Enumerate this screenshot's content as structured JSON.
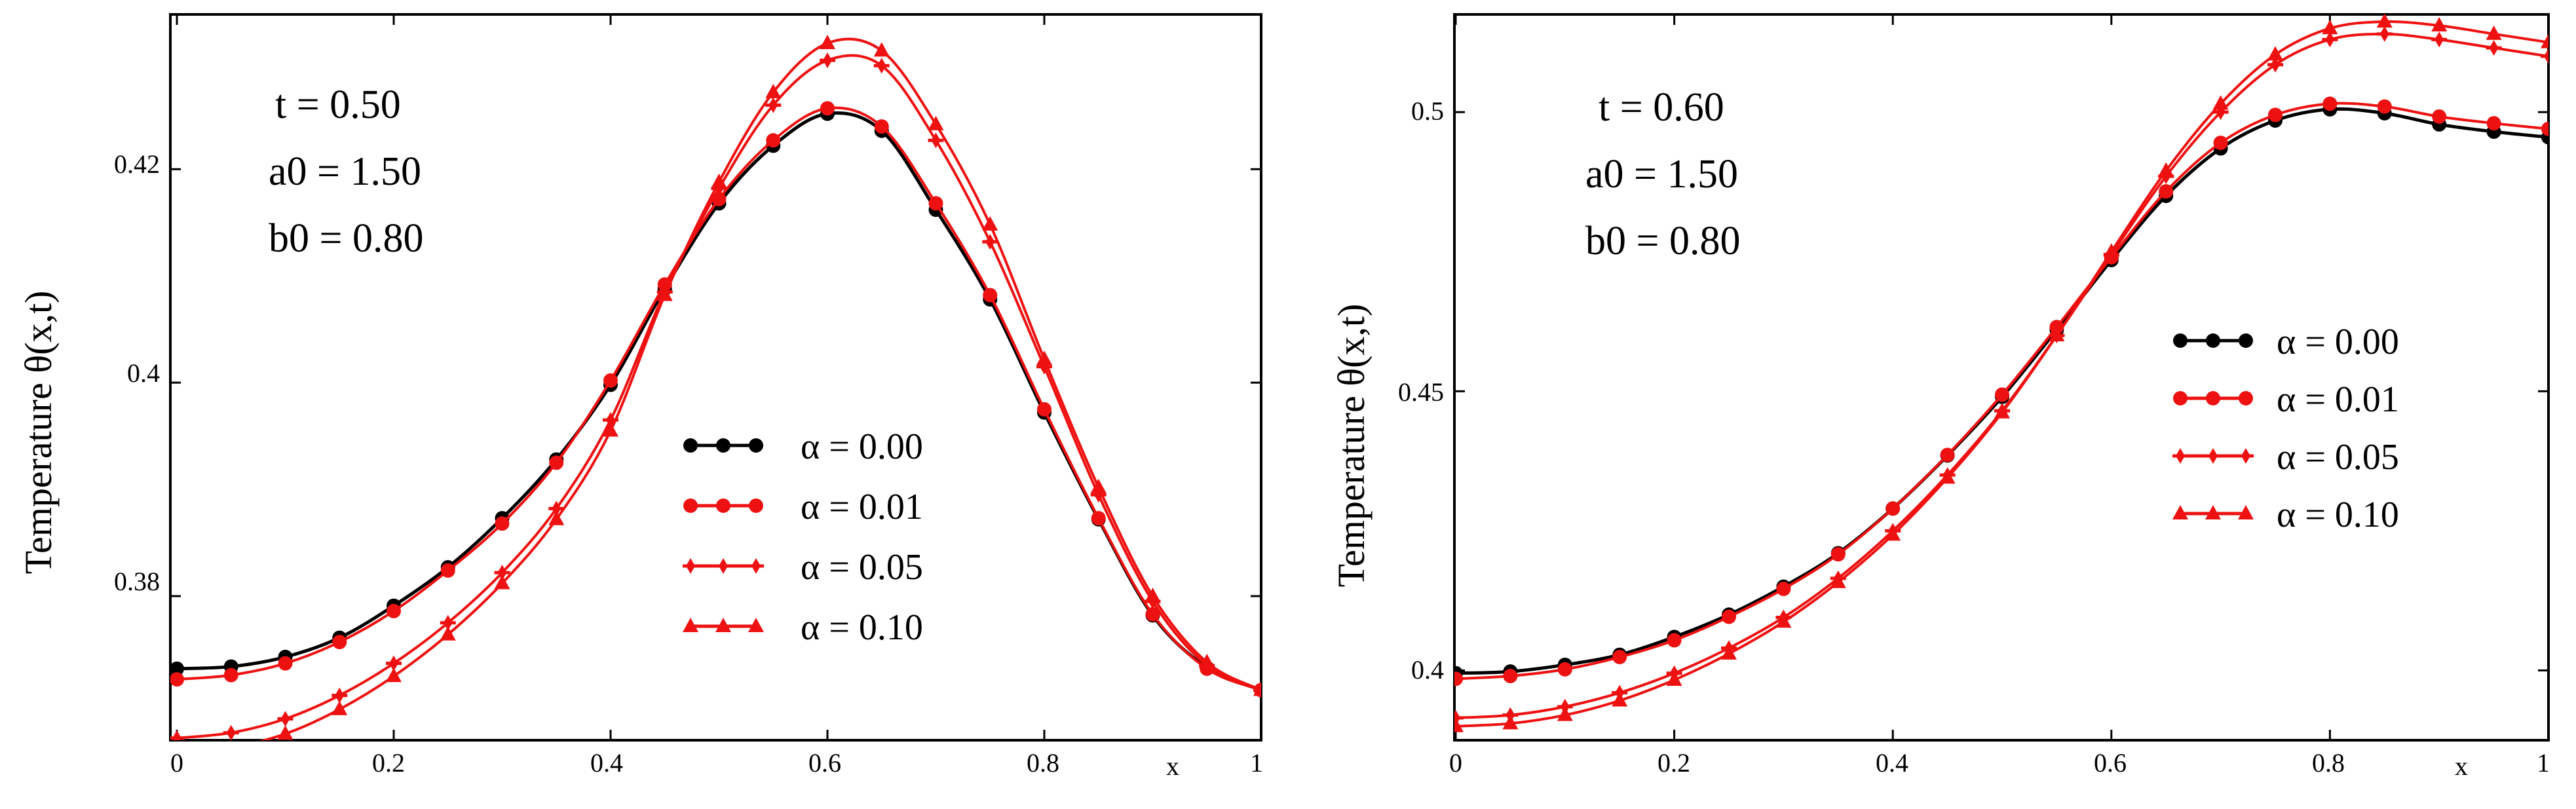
{
  "chart_data": [
    {
      "type": "line",
      "title": "",
      "xlabel": "x",
      "ylabel": "Temperature θ(x,t)",
      "xlim": [
        0,
        1
      ],
      "ylim": [
        0.3665,
        0.4345
      ],
      "x_ticks": [
        "0",
        "0.2",
        "0.4",
        "0.6",
        "0.8",
        "1"
      ],
      "y_ticks": [
        "0.38",
        "0.4",
        "0.42"
      ],
      "annotations": [
        "t = 0.50",
        "a0 = 1.50",
        "b0 = 0.80"
      ],
      "legend_position": "center-right",
      "x": [
        0,
        0.05,
        0.1,
        0.15,
        0.2,
        0.25,
        0.3,
        0.35,
        0.4,
        0.45,
        0.5,
        0.55,
        0.6,
        0.65,
        0.7,
        0.75,
        0.8,
        0.85,
        0.9,
        0.95,
        1.0
      ],
      "series": [
        {
          "name": "α = 0.00",
          "color": "#000000",
          "marker": "circle",
          "values": [
            0.3732,
            0.3734,
            0.3743,
            0.3761,
            0.3791,
            0.3827,
            0.3873,
            0.3928,
            0.3998,
            0.4088,
            0.4168,
            0.4222,
            0.4252,
            0.4236,
            0.4162,
            0.4078,
            0.3972,
            0.3872,
            0.3782,
            0.3733,
            0.3712
          ]
        },
        {
          "name": "α = 0.01",
          "color": "#ee1111",
          "marker": "circle",
          "values": [
            0.3722,
            0.3726,
            0.3737,
            0.3757,
            0.3786,
            0.3824,
            0.3868,
            0.3925,
            0.4002,
            0.4092,
            0.4172,
            0.4227,
            0.4257,
            0.424,
            0.4168,
            0.4082,
            0.3975,
            0.3873,
            0.3783,
            0.3732,
            0.3712
          ]
        },
        {
          "name": "α = 0.05",
          "color": "#ee1111",
          "marker": "plus",
          "values": [
            0.3667,
            0.3672,
            0.3685,
            0.3707,
            0.3737,
            0.3775,
            0.3822,
            0.3882,
            0.3965,
            0.4085,
            0.4182,
            0.426,
            0.4302,
            0.4297,
            0.4227,
            0.4132,
            0.4015,
            0.3895,
            0.3795,
            0.3735,
            0.3712
          ]
        },
        {
          "name": "α = 0.10",
          "color": "#ee1111",
          "marker": "triangle",
          "values": [
            0.3652,
            0.3658,
            0.3671,
            0.3694,
            0.3725,
            0.3764,
            0.3812,
            0.3872,
            0.3955,
            0.4082,
            0.4188,
            0.4272,
            0.4318,
            0.4311,
            0.4242,
            0.4148,
            0.4022,
            0.3902,
            0.38,
            0.3738,
            0.3712
          ]
        }
      ]
    },
    {
      "type": "line",
      "title": "",
      "xlabel": "x",
      "ylabel": "Temperature θ(x,t)",
      "xlim": [
        0,
        1
      ],
      "ylim": [
        0.3875,
        0.5175
      ],
      "x_ticks": [
        "0",
        "0.2",
        "0.4",
        "0.6",
        "0.8",
        "1"
      ],
      "y_ticks": [
        "0.4",
        "0.45",
        "0.5"
      ],
      "annotations": [
        "t = 0.60",
        "a0 = 1.50",
        "b0 = 0.80"
      ],
      "legend_position": "center-right",
      "x": [
        0,
        0.05,
        0.1,
        0.15,
        0.2,
        0.25,
        0.3,
        0.35,
        0.4,
        0.45,
        0.5,
        0.55,
        0.6,
        0.65,
        0.7,
        0.75,
        0.8,
        0.85,
        0.9,
        0.95,
        1.0
      ],
      "series": [
        {
          "name": "α = 0.00",
          "color": "#000000",
          "marker": "circle",
          "values": [
            0.3995,
            0.3998,
            0.401,
            0.4028,
            0.406,
            0.41,
            0.415,
            0.421,
            0.429,
            0.4385,
            0.449,
            0.461,
            0.4735,
            0.485,
            0.4935,
            0.4985,
            0.5005,
            0.4998,
            0.4978,
            0.4965,
            0.4955
          ]
        },
        {
          "name": "α = 0.01",
          "color": "#ee1111",
          "marker": "circle",
          "values": [
            0.3985,
            0.399,
            0.4002,
            0.4024,
            0.4054,
            0.4096,
            0.4146,
            0.4208,
            0.429,
            0.4386,
            0.4494,
            0.4615,
            0.474,
            0.4858,
            0.4945,
            0.4995,
            0.5015,
            0.501,
            0.4992,
            0.498,
            0.497
          ]
        },
        {
          "name": "α = 0.05",
          "color": "#ee1111",
          "marker": "plus",
          "values": [
            0.3915,
            0.392,
            0.3935,
            0.396,
            0.3995,
            0.404,
            0.4095,
            0.4165,
            0.425,
            0.435,
            0.4465,
            0.46,
            0.4745,
            0.4885,
            0.5,
            0.5085,
            0.513,
            0.514,
            0.513,
            0.5115,
            0.51
          ]
        },
        {
          "name": "α = 0.10",
          "color": "#ee1111",
          "marker": "triangle",
          "values": [
            0.39,
            0.3905,
            0.392,
            0.3946,
            0.3983,
            0.403,
            0.4087,
            0.4158,
            0.4243,
            0.4345,
            0.4462,
            0.46,
            0.475,
            0.4895,
            0.5015,
            0.5103,
            0.515,
            0.5162,
            0.5155,
            0.514,
            0.5125
          ]
        }
      ]
    }
  ]
}
